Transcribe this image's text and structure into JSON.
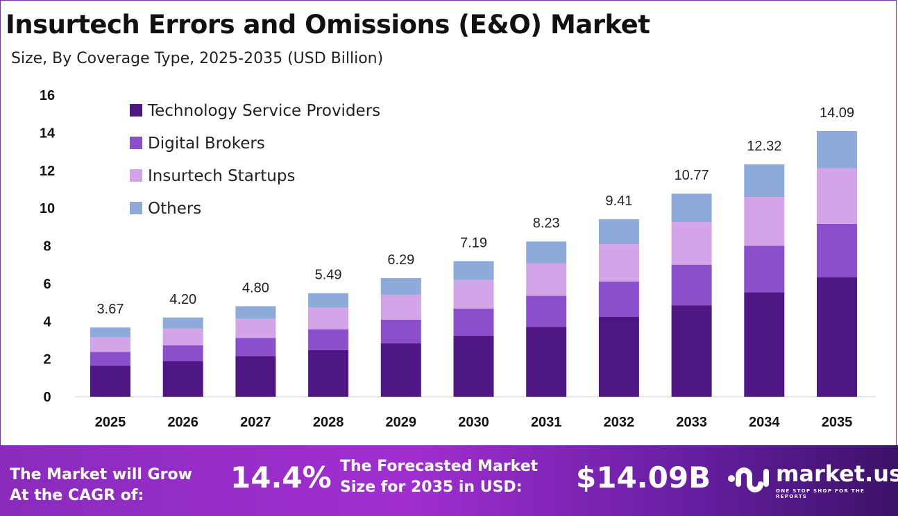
{
  "chart_data": {
    "type": "bar",
    "stacked": true,
    "title": "Insurtech Errors and Omissions (E&O) Market",
    "subtitle": "Size, By Coverage Type, 2025-2035 (USD Billion)",
    "categories": [
      "2025",
      "2026",
      "2027",
      "2028",
      "2029",
      "2030",
      "2031",
      "2032",
      "2033",
      "2034",
      "2035"
    ],
    "series": [
      {
        "name": "Technology Service Providers",
        "color": "#4f1783",
        "values": [
          1.65,
          1.89,
          2.16,
          2.47,
          2.83,
          3.24,
          3.7,
          4.23,
          4.85,
          5.54,
          6.34
        ]
      },
      {
        "name": "Digital Brokers",
        "color": "#8b4fcb",
        "values": [
          0.73,
          0.84,
          0.96,
          1.1,
          1.26,
          1.44,
          1.65,
          1.88,
          2.15,
          2.46,
          2.82
        ]
      },
      {
        "name": "Insurtech Startups",
        "color": "#d3a5e8",
        "values": [
          0.77,
          0.88,
          1.01,
          1.15,
          1.32,
          1.51,
          1.73,
          1.98,
          2.26,
          2.59,
          2.96
        ]
      },
      {
        "name": "Others",
        "color": "#8eaadb",
        "values": [
          0.52,
          0.59,
          0.67,
          0.77,
          0.88,
          1.0,
          1.15,
          1.32,
          1.51,
          1.73,
          1.97
        ]
      }
    ],
    "totals": [
      "3.67",
      "4.20",
      "4.80",
      "5.49",
      "6.29",
      "7.19",
      "8.23",
      "9.41",
      "10.77",
      "12.32",
      "14.09"
    ],
    "ylim": [
      0,
      16
    ],
    "yticks": [
      "0",
      "2",
      "4",
      "6",
      "8",
      "10",
      "12",
      "14",
      "16"
    ],
    "grid": false,
    "legend_position": "top-left"
  },
  "footer": {
    "cagr_label_1": "The Market will Grow",
    "cagr_label_2": "At the CAGR of:",
    "cagr_value": "14.4%",
    "forecast_label_1": "The Forecasted Market",
    "forecast_label_2": "Size for 2035 in USD:",
    "forecast_value": "$14.09B",
    "brand": "market.us",
    "tagline": "ONE STOP SHOP FOR THE REPORTS"
  }
}
